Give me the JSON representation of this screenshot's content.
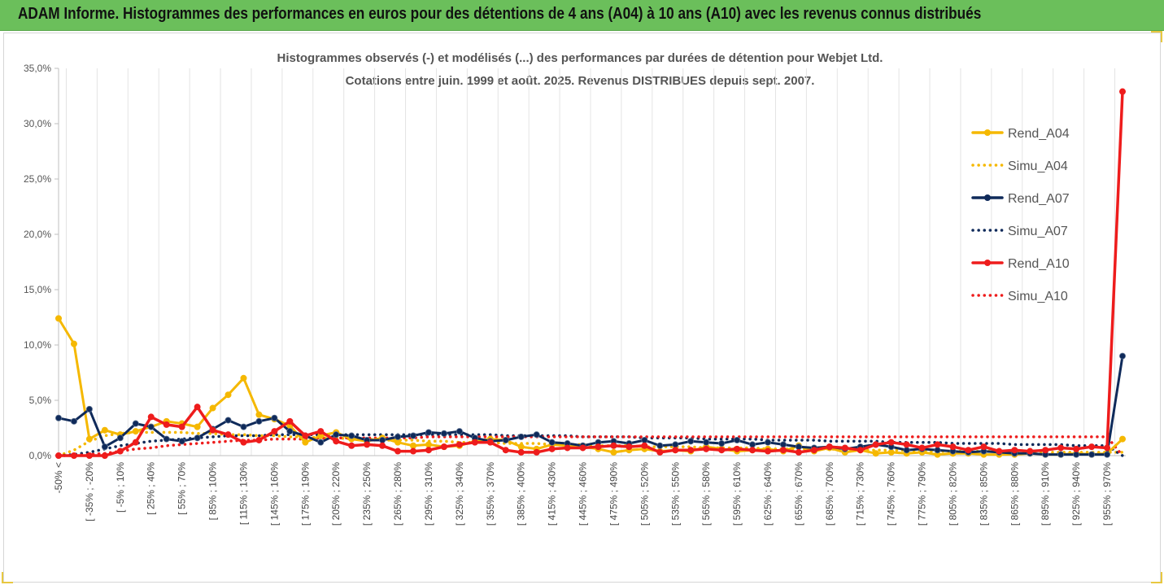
{
  "header": {
    "title": "ADAM Informe. Histogrammes des performances en euros pour des détentions de 4 ans (A04) à 10 ans (A10) avec les revenus connus distribués",
    "background": "#6bbf5b"
  },
  "chart_data": {
    "type": "line",
    "title_line1": "Histogrammes observés (-) et modélisés (...) des performances par durées de détention pour Webjet Ltd.",
    "title_line2": "Cotations entre juin. 1999 et août. 2025. Revenus DISTRIBUES depuis sept. 2007.",
    "ylim": [
      0,
      35
    ],
    "yticks": [
      0,
      5,
      10,
      15,
      20,
      25,
      30,
      35
    ],
    "ytick_labels": [
      "0,0%",
      "5,0%",
      "10,0%",
      "15,0%",
      "20,0%",
      "25,0%",
      "30,0%",
      "35,0%"
    ],
    "grid": "vertical",
    "legend_position": "top-right",
    "x_labels": [
      "-50% <",
      "[ -35% ; -20%",
      "[ -5% ; 10%",
      "[ 25% ; 40%",
      "[ 55% ; 70%",
      "[ 85% ; 100%",
      "[ 115% ; 130%",
      "[ 145% ; 160%",
      "[ 175% ; 190%",
      "[ 205% ; 220%",
      "[ 235% ; 250%",
      "[ 265% ; 280%",
      "[ 295% ; 310%",
      "[ 325% ; 340%",
      "[ 355% ; 370%",
      "[ 385% ; 400%",
      "[ 415% ; 430%",
      "[ 445% ; 460%",
      "[ 475% ; 490%",
      "[ 505% ; 520%",
      "[ 535% ; 550%",
      "[ 565% ; 580%",
      "[ 595% ; 610%",
      "[ 625% ; 640%",
      "[ 655% ; 670%",
      "[ 685% ; 700%",
      "[ 715% ; 730%",
      "[ 745% ; 760%",
      "[ 775% ; 790%",
      "[ 805% ; 820%",
      "[ 835% ; 850%",
      "[ 865% ; 880%",
      "[ 895% ; 910%",
      "[ 925% ; 940%",
      "[ 955% ; 970%"
    ],
    "x_label_every": 2,
    "n_points": 70,
    "series": [
      {
        "name": "Rend_A04",
        "style": "solid",
        "color": "#f5b800",
        "markers": true,
        "values": [
          12.4,
          10.1,
          1.5,
          2.3,
          1.9,
          2.2,
          2.6,
          3.1,
          2.9,
          2.6,
          4.3,
          5.5,
          7.0,
          3.7,
          3.3,
          2.7,
          1.2,
          1.8,
          2.1,
          1.5,
          1.3,
          1.6,
          1.2,
          0.9,
          1.0,
          0.8,
          0.9,
          1.3,
          1.5,
          1.4,
          0.8,
          0.6,
          1.0,
          0.9,
          0.8,
          0.6,
          0.3,
          0.5,
          0.6,
          0.4,
          0.5,
          0.4,
          0.8,
          0.6,
          0.4,
          0.5,
          0.6,
          0.4,
          0.9,
          0.4,
          0.7,
          0.3,
          0.5,
          0.2,
          0.3,
          0.2,
          0.3,
          0.1,
          0.2,
          0.2,
          0.1,
          0.1,
          0.1,
          0.2,
          0.1,
          0.1,
          0.2,
          0.1,
          0.2,
          1.5
        ]
      },
      {
        "name": "Simu_A04",
        "style": "dotted",
        "color": "#f5b800",
        "markers": false,
        "values": [
          0.0,
          0.5,
          1.3,
          1.8,
          2.0,
          2.1,
          2.1,
          2.1,
          2.1,
          2.0,
          2.0,
          1.9,
          1.9,
          1.8,
          1.8,
          1.7,
          1.7,
          1.6,
          1.6,
          1.5,
          1.5,
          1.4,
          1.4,
          1.4,
          1.3,
          1.3,
          1.2,
          1.2,
          1.2,
          1.1,
          1.1,
          1.1,
          1.0,
          1.0,
          1.0,
          0.9,
          0.9,
          0.9,
          0.8,
          0.8,
          0.8,
          0.8,
          0.7,
          0.7,
          0.7,
          0.7,
          0.6,
          0.6,
          0.6,
          0.6,
          0.6,
          0.5,
          0.5,
          0.5,
          0.5,
          0.5,
          0.4,
          0.4,
          0.4,
          0.4,
          0.4,
          0.4,
          0.4,
          0.3,
          0.3,
          0.3,
          0.3,
          0.3,
          0.3,
          0.3
        ]
      },
      {
        "name": "Rend_A07",
        "style": "solid",
        "color": "#0f2a5a",
        "markers": true,
        "values": [
          3.4,
          3.1,
          4.2,
          0.8,
          1.6,
          2.9,
          2.6,
          1.5,
          1.3,
          1.6,
          2.4,
          3.2,
          2.6,
          3.1,
          3.4,
          2.2,
          1.8,
          1.2,
          1.9,
          1.8,
          1.4,
          1.4,
          1.7,
          1.8,
          2.1,
          2.0,
          2.2,
          1.6,
          1.3,
          1.4,
          1.7,
          1.9,
          1.2,
          1.1,
          0.9,
          1.2,
          1.3,
          1.1,
          1.4,
          0.9,
          1.0,
          1.3,
          1.2,
          1.1,
          1.4,
          1.0,
          1.2,
          1.0,
          0.8,
          0.7,
          0.8,
          0.6,
          0.8,
          1.0,
          0.8,
          0.5,
          0.6,
          0.5,
          0.4,
          0.3,
          0.4,
          0.3,
          0.2,
          0.2,
          0.1,
          0.1,
          0.1,
          0.1,
          0.1,
          9.0
        ]
      },
      {
        "name": "Simu_A07",
        "style": "dotted",
        "color": "#0f2a5a",
        "markers": false,
        "values": [
          0.0,
          0.1,
          0.3,
          0.6,
          0.9,
          1.1,
          1.3,
          1.4,
          1.5,
          1.6,
          1.7,
          1.8,
          1.8,
          1.8,
          1.9,
          1.9,
          1.9,
          1.9,
          1.9,
          1.9,
          1.9,
          1.9,
          1.9,
          1.9,
          1.9,
          1.9,
          1.9,
          1.9,
          1.9,
          1.8,
          1.8,
          1.8,
          1.8,
          1.8,
          1.7,
          1.7,
          1.7,
          1.7,
          1.6,
          1.6,
          1.6,
          1.6,
          1.5,
          1.5,
          1.5,
          1.5,
          1.4,
          1.4,
          1.4,
          1.4,
          1.3,
          1.3,
          1.3,
          1.3,
          1.2,
          1.2,
          1.2,
          1.2,
          1.1,
          1.1,
          1.1,
          1.1,
          1.0,
          1.0,
          1.0,
          1.0,
          0.9,
          0.9,
          0.9,
          0.0
        ]
      },
      {
        "name": "Rend_A10",
        "style": "solid",
        "color": "#ee1c1c",
        "markers": true,
        "values": [
          0.0,
          0.0,
          0.0,
          0.0,
          0.4,
          1.2,
          3.5,
          2.8,
          2.6,
          4.4,
          2.3,
          1.9,
          1.2,
          1.4,
          2.2,
          3.1,
          1.8,
          2.2,
          1.3,
          0.9,
          1.0,
          0.9,
          0.4,
          0.4,
          0.5,
          0.8,
          1.0,
          1.2,
          1.2,
          0.5,
          0.3,
          0.3,
          0.6,
          0.7,
          0.7,
          0.8,
          0.9,
          0.8,
          0.9,
          0.3,
          0.5,
          0.5,
          0.6,
          0.5,
          0.6,
          0.5,
          0.4,
          0.5,
          0.3,
          0.5,
          0.8,
          0.7,
          0.5,
          1.0,
          1.2,
          1.0,
          0.7,
          1.0,
          0.8,
          0.5,
          0.8,
          0.4,
          0.5,
          0.4,
          0.5,
          0.7,
          0.6,
          0.8,
          0.7,
          32.9
        ]
      },
      {
        "name": "Simu_A10",
        "style": "dotted",
        "color": "#ee1c1c",
        "markers": false,
        "values": [
          0.0,
          0.0,
          0.1,
          0.2,
          0.4,
          0.6,
          0.7,
          0.9,
          1.0,
          1.1,
          1.2,
          1.3,
          1.4,
          1.4,
          1.5,
          1.5,
          1.5,
          1.6,
          1.6,
          1.6,
          1.6,
          1.6,
          1.6,
          1.6,
          1.7,
          1.7,
          1.7,
          1.7,
          1.7,
          1.7,
          1.7,
          1.7,
          1.7,
          1.7,
          1.7,
          1.7,
          1.7,
          1.7,
          1.7,
          1.7,
          1.7,
          1.7,
          1.7,
          1.7,
          1.7,
          1.7,
          1.7,
          1.7,
          1.7,
          1.7,
          1.7,
          1.7,
          1.7,
          1.7,
          1.7,
          1.7,
          1.7,
          1.7,
          1.7,
          1.7,
          1.7,
          1.7,
          1.7,
          1.7,
          1.7,
          1.7,
          1.7,
          1.7,
          1.7,
          0.0
        ]
      }
    ]
  }
}
